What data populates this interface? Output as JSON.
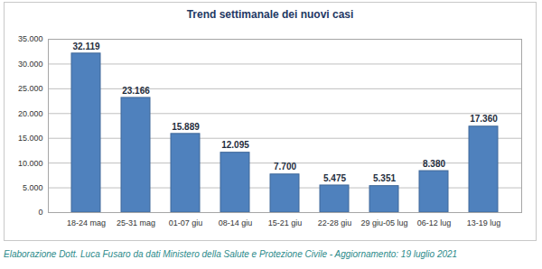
{
  "chart_data": {
    "type": "bar",
    "title": "Trend settimanale dei nuovi casi",
    "caption": "Elaborazione Dott. Luca Fusaro da dati Ministero della Salute e Protezione Civile - Aggiornamento: 19 luglio 2021",
    "categories": [
      "18-24 mag",
      "25-31 mag",
      "01-07 giu",
      "08-14 giu",
      "15-21 giu",
      "22-28 giu",
      "29 giu-05 lug",
      "06-12 lug",
      "13-19 lug"
    ],
    "values": [
      32119,
      23166,
      15889,
      12095,
      7700,
      5475,
      5351,
      8380,
      17360
    ],
    "value_labels": [
      "32.119",
      "23.166",
      "15.889",
      "12.095",
      "7.700",
      "5.475",
      "5.351",
      "8.380",
      "17.360"
    ],
    "color": "#4f81bd",
    "ylim": [
      0,
      35000
    ],
    "yticks": [
      0,
      {
        "value": 5000,
        "label": "5.000"
      },
      {
        "value": 10000,
        "label": "10.000"
      },
      {
        "value": 15000,
        "label": "15.000"
      },
      {
        "value": 20000,
        "label": "20.000"
      },
      {
        "value": 25000,
        "label": "25.000"
      },
      {
        "value": 30000,
        "label": "30.000"
      },
      {
        "value": 35000,
        "label": "35.000"
      }
    ],
    "grid": true,
    "data_labels": true
  }
}
